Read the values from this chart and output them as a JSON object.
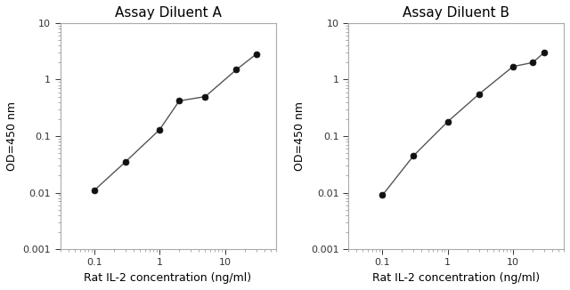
{
  "title_A": "Assay Diluent A",
  "title_B": "Assay Diluent B",
  "xlabel": "Rat IL-2 concentration (ng/ml)",
  "ylabel": "OD=450 nm",
  "xlim": [
    0.03,
    60
  ],
  "ylim": [
    0.001,
    10
  ],
  "x_A": [
    0.1,
    0.3,
    1.0,
    2.0,
    5.0,
    15.0,
    30.0
  ],
  "y_A": [
    0.011,
    0.035,
    0.13,
    0.42,
    0.5,
    1.5,
    2.8
  ],
  "x_B": [
    0.1,
    0.3,
    1.0,
    3.0,
    10.0,
    20.0,
    30.0
  ],
  "y_B": [
    0.009,
    0.045,
    0.18,
    0.55,
    1.7,
    2.0,
    3.0
  ],
  "line_color": "#555555",
  "marker": "o",
  "markersize": 5,
  "linewidth": 1.0,
  "title_fontsize": 11,
  "label_fontsize": 9,
  "tick_fontsize": 8,
  "bg_color": "#ffffff"
}
